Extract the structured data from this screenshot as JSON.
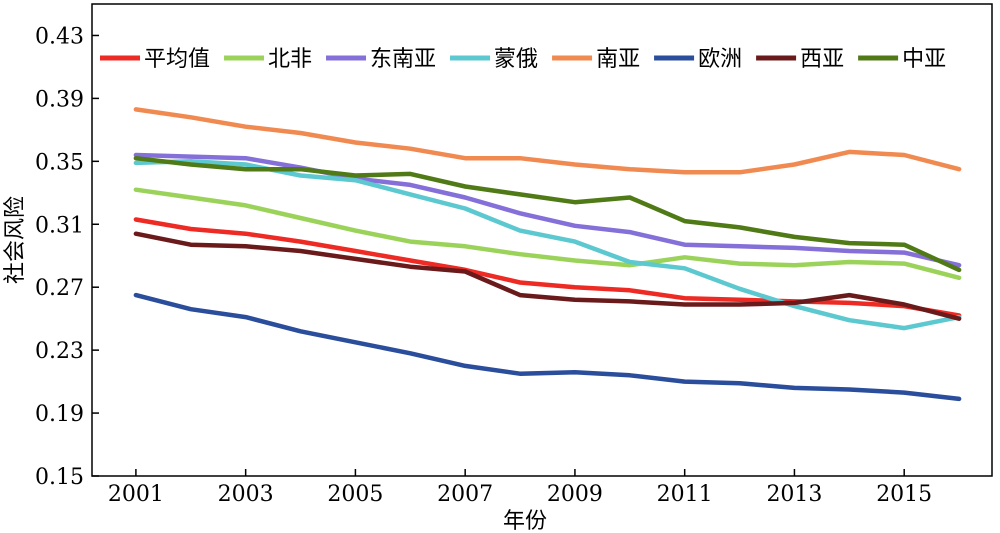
{
  "chart_data": {
    "type": "line",
    "xlabel": "年份",
    "ylabel": "社会风险",
    "xlim": [
      2000.2,
      2016.6
    ],
    "ylim": [
      0.15,
      0.45
    ],
    "x_ticks": [
      2001,
      2003,
      2005,
      2007,
      2009,
      2011,
      2013,
      2015
    ],
    "x_tick_labels": [
      "2001",
      "2003",
      "2005",
      "2007",
      "2009",
      "2011",
      "2013",
      "2015"
    ],
    "y_ticks": [
      0.15,
      0.19,
      0.23,
      0.27,
      0.31,
      0.35,
      0.39,
      0.43
    ],
    "y_tick_labels": [
      "0.15",
      "0.19",
      "0.23",
      "0.27",
      "0.31",
      "0.35",
      "0.39",
      "0.43"
    ],
    "legend_position": "top",
    "grid": false,
    "x": [
      2001,
      2002,
      2003,
      2004,
      2005,
      2006,
      2007,
      2008,
      2009,
      2010,
      2011,
      2012,
      2013,
      2014,
      2015,
      2016
    ],
    "series": [
      {
        "name": "平均值",
        "color": "#ee2a24",
        "values": [
          0.313,
          0.307,
          0.304,
          0.299,
          0.293,
          0.287,
          0.281,
          0.273,
          0.27,
          0.268,
          0.263,
          0.262,
          0.261,
          0.26,
          0.258,
          0.252
        ]
      },
      {
        "name": "北非",
        "color": "#9bd35a",
        "values": [
          0.332,
          0.327,
          0.322,
          0.314,
          0.306,
          0.299,
          0.296,
          0.291,
          0.287,
          0.284,
          0.289,
          0.285,
          0.284,
          0.286,
          0.285,
          0.276
        ]
      },
      {
        "name": "东南亚",
        "color": "#8470d8",
        "values": [
          0.354,
          0.353,
          0.352,
          0.346,
          0.339,
          0.335,
          0.327,
          0.317,
          0.309,
          0.305,
          0.297,
          0.296,
          0.295,
          0.293,
          0.292,
          0.284
        ]
      },
      {
        "name": "蒙俄",
        "color": "#5cc8cf",
        "values": [
          0.349,
          0.35,
          0.348,
          0.341,
          0.338,
          0.329,
          0.32,
          0.306,
          0.299,
          0.286,
          0.282,
          0.269,
          0.258,
          0.249,
          0.244,
          0.251
        ]
      },
      {
        "name": "南亚",
        "color": "#f08a50",
        "values": [
          0.383,
          0.378,
          0.372,
          0.368,
          0.362,
          0.358,
          0.352,
          0.352,
          0.348,
          0.345,
          0.343,
          0.343,
          0.348,
          0.356,
          0.354,
          0.345
        ]
      },
      {
        "name": "欧洲",
        "color": "#2a4d9c",
        "values": [
          0.265,
          0.256,
          0.251,
          0.242,
          0.235,
          0.228,
          0.22,
          0.215,
          0.216,
          0.214,
          0.21,
          0.209,
          0.206,
          0.205,
          0.203,
          0.199
        ]
      },
      {
        "name": "西亚",
        "color": "#6a1a1a",
        "values": [
          0.304,
          0.297,
          0.296,
          0.293,
          0.288,
          0.283,
          0.28,
          0.265,
          0.262,
          0.261,
          0.259,
          0.259,
          0.26,
          0.265,
          0.259,
          0.25
        ]
      },
      {
        "name": "中亚",
        "color": "#4f7a16",
        "values": [
          0.352,
          0.348,
          0.345,
          0.345,
          0.341,
          0.342,
          0.334,
          0.329,
          0.324,
          0.327,
          0.312,
          0.308,
          0.302,
          0.298,
          0.297,
          0.281
        ]
      }
    ]
  }
}
